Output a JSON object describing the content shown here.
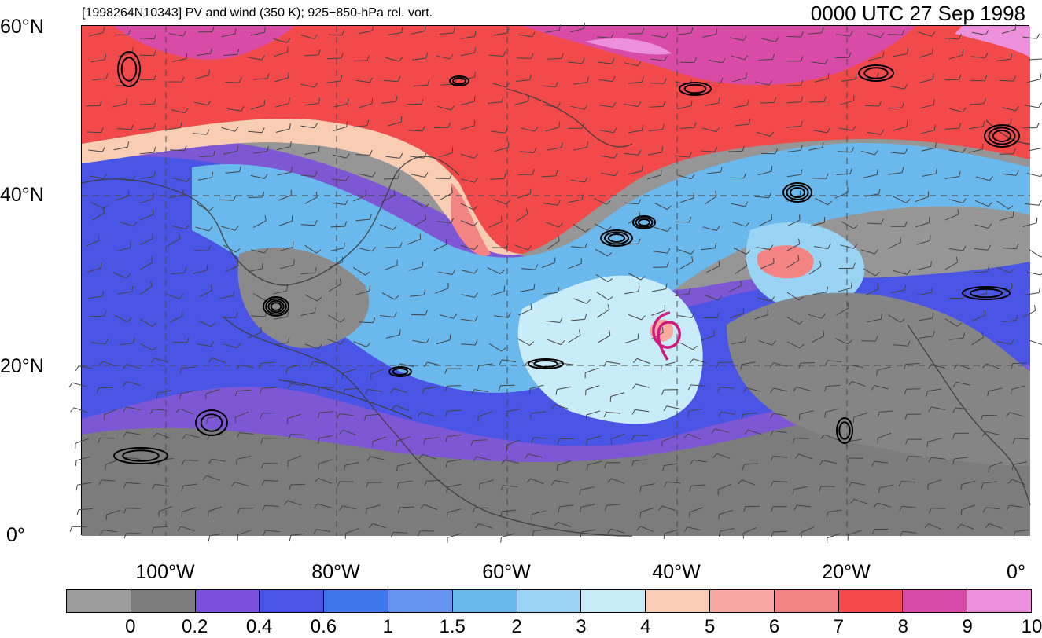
{
  "title": {
    "left": "[1998264N10343] PV and wind (350 K); 925−850-hPa rel. vort.",
    "right": "0000 UTC 27 Sep 1998"
  },
  "map": {
    "lat_labels": [
      "60°N",
      "40°N",
      "20°N",
      "0°"
    ],
    "lon_labels": [
      "100°W",
      "80°W",
      "60°W",
      "40°W",
      "20°W",
      "0°"
    ],
    "layers": [
      "pv-shading",
      "coastlines",
      "wind-barbs",
      "vorticity-contours",
      "storm-track"
    ]
  },
  "colorbar": {
    "labels": [
      "0",
      "0.2",
      "0.4",
      "0.6",
      "1",
      "1.5",
      "2",
      "3",
      "4",
      "5",
      "6",
      "7",
      "8",
      "9",
      "10"
    ],
    "colors": [
      "#9c9c9c",
      "#7c7c7c",
      "#7b50dc",
      "#4a55e6",
      "#3c78ec",
      "#6494f0",
      "#6ab8ec",
      "#9ad4f4",
      "#c8ecfa",
      "#f8cdb4",
      "#f8aaa0",
      "#f48484",
      "#f24a4a",
      "#d84ca8",
      "#ec90dc"
    ]
  }
}
